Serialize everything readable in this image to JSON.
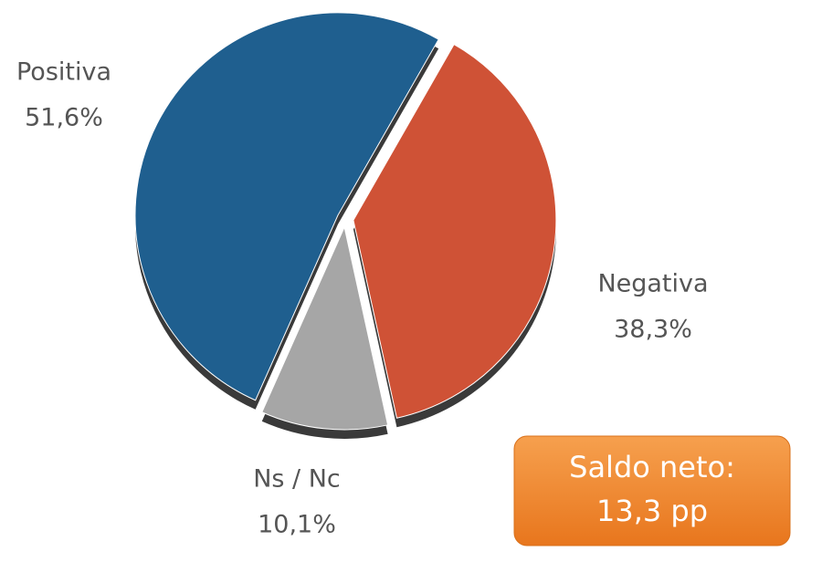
{
  "chart_data": {
    "type": "pie",
    "categories": [
      "Positiva",
      "Negativa",
      "Ns / Nc"
    ],
    "values": [
      51.6,
      38.3,
      10.1
    ],
    "value_labels": [
      "51,6%",
      "38,3%",
      "10,1%"
    ],
    "colors": [
      "#1f5f8f",
      "#cf5236",
      "#a6a6a6"
    ],
    "annotation": [
      "Saldo neto:",
      "13,3 pp"
    ]
  }
}
